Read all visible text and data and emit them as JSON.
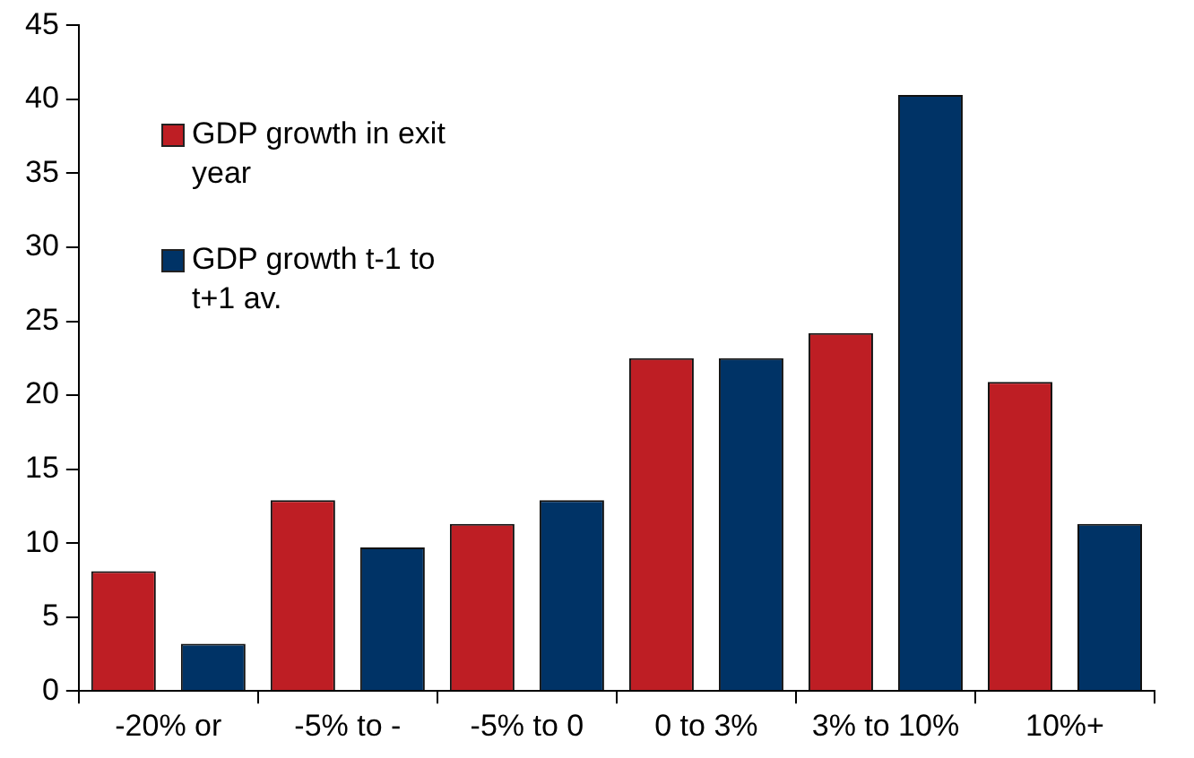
{
  "chart_data": {
    "type": "bar",
    "categories": [
      "-20% or",
      "-5% to -",
      "-5% to 0",
      "0 to 3%",
      "3% to 10%",
      "10%+"
    ],
    "series": [
      {
        "name": "GDP growth in exit year",
        "color": "#be1e24",
        "values": [
          8.1,
          12.9,
          11.3,
          22.5,
          24.2,
          20.9
        ]
      },
      {
        "name": "GDP growth t-1 to t+1 av.",
        "color": "#003366",
        "values": [
          3.2,
          9.7,
          12.9,
          22.5,
          40.3,
          11.3
        ]
      }
    ],
    "ylim": [
      0,
      45
    ],
    "yticks": [
      0,
      5,
      10,
      15,
      20,
      25,
      30,
      35,
      40,
      45
    ],
    "grid": false,
    "legend": "top left"
  }
}
